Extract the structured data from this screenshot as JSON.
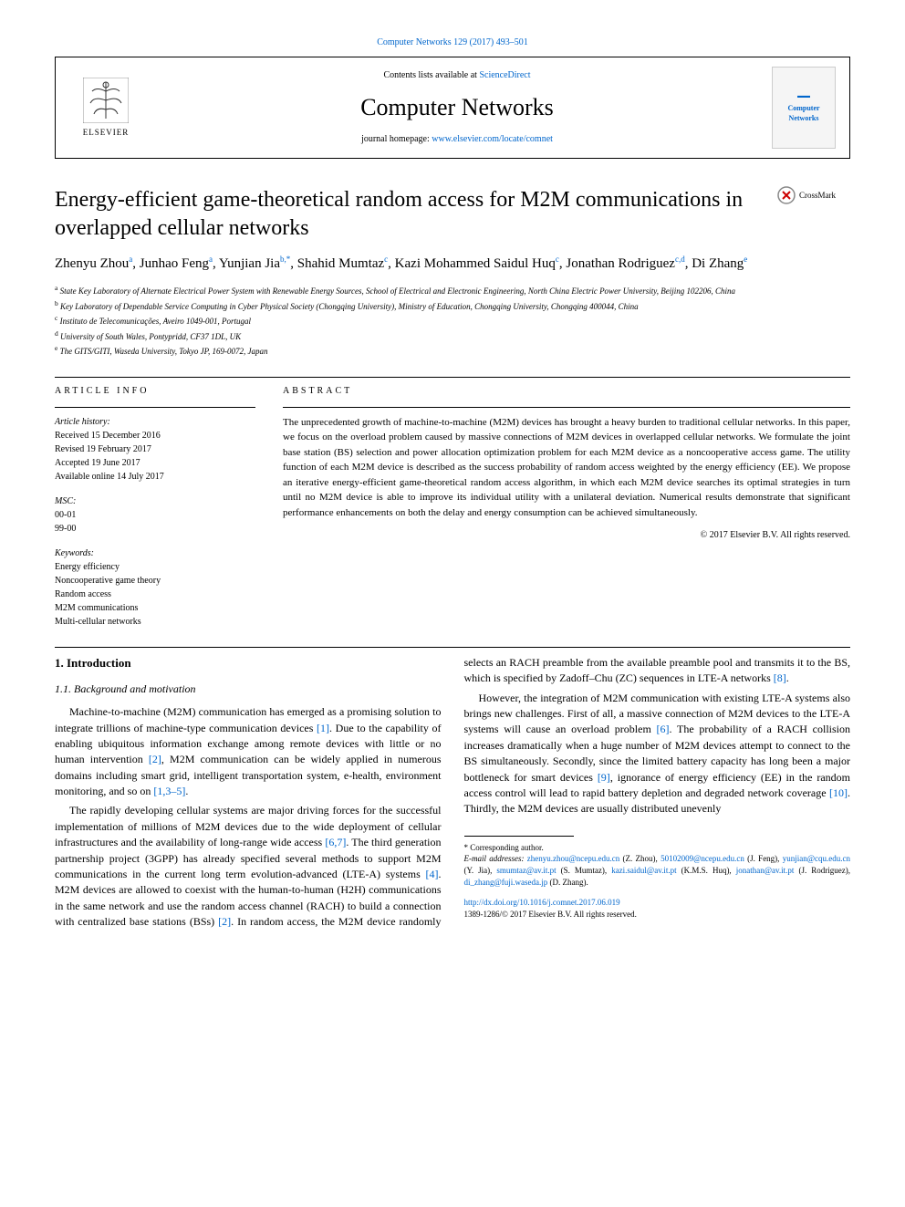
{
  "header": {
    "citation": "Computer Networks 129 (2017) 493–501",
    "contents_prefix": "Contents lists available at ",
    "sciencedirect": "ScienceDirect",
    "journal_title": "Computer Networks",
    "homepage_prefix": "journal homepage: ",
    "homepage_url": "www.elsevier.com/locate/comnet",
    "elsevier_label": "ELSEVIER",
    "cover_text": "Computer Networks"
  },
  "crossmark_label": "CrossMark",
  "title": "Energy-efficient game-theoretical random access for M2M communications in overlapped cellular networks",
  "authors_html": "Zhenyu Zhou<sup class='sup-link'>a</sup>, Junhao Feng<sup class='sup-link'>a</sup>, Yunjian Jia<sup class='sup-link'>b,*</sup>, Shahid Mumtaz<sup class='sup-link'>c</sup>, Kazi Mohammed Saidul Huq<sup class='sup-link'>c</sup>, Jonathan Rodriguez<sup class='sup-link'>c,d</sup>, Di Zhang<sup class='sup-link'>e</sup>",
  "affiliations": [
    {
      "sup": "a",
      "text": "State Key Laboratory of Alternate Electrical Power System with Renewable Energy Sources, School of Electrical and Electronic Engineering, North China Electric Power University, Beijing 102206, China"
    },
    {
      "sup": "b",
      "text": "Key Laboratory of Dependable Service Computing in Cyber Physical Society (Chongqing University), Ministry of Education, Chongqing University, Chongqing 400044, China"
    },
    {
      "sup": "c",
      "text": "Instituto de Telecomunicações, Aveiro 1049-001, Portugal"
    },
    {
      "sup": "d",
      "text": "University of South Wales, Pontypridd, CF37 1DL, UK"
    },
    {
      "sup": "e",
      "text": "The GITS/GITI, Waseda University, Tokyo JP, 169-0072, Japan"
    }
  ],
  "article_info_head": "ARTICLE INFO",
  "abstract_head": "ABSTRACT",
  "history": {
    "label": "Article history:",
    "received": "Received 15 December 2016",
    "revised": "Revised 19 February 2017",
    "accepted": "Accepted 19 June 2017",
    "online": "Available online 14 July 2017"
  },
  "msc": {
    "label": "MSC:",
    "codes": [
      "00-01",
      "99-00"
    ]
  },
  "keywords": {
    "label": "Keywords:",
    "items": [
      "Energy efficiency",
      "Noncooperative game theory",
      "Random access",
      "M2M communications",
      "Multi-cellular networks"
    ]
  },
  "abstract_text": "The unprecedented growth of machine-to-machine (M2M) devices has brought a heavy burden to traditional cellular networks. In this paper, we focus on the overload problem caused by massive connections of M2M devices in overlapped cellular networks. We formulate the joint base station (BS) selection and power allocation optimization problem for each M2M device as a noncooperative access game. The utility function of each M2M device is described as the success probability of random access weighted by the energy efficiency (EE). We propose an iterative energy-efficient game-theoretical random access algorithm, in which each M2M device searches its optimal strategies in turn until no M2M device is able to improve its individual utility with a unilateral deviation. Numerical results demonstrate that significant performance enhancements on both the delay and energy consumption can be achieved simultaneously.",
  "copyright": "© 2017 Elsevier B.V. All rights reserved.",
  "sec1": "1. Introduction",
  "sec11": "1.1. Background and motivation",
  "para1_html": "Machine-to-machine (M2M) communication has emerged as a promising solution to integrate trillions of machine-type communication devices <span class='cite'>[1]</span>. Due to the capability of enabling ubiquitous information exchange among remote devices with little or no human intervention <span class='cite'>[2]</span>, M2M communication can be widely applied in numerous domains including smart grid, intelligent transportation system, e-health, environment monitoring, and so on <span class='cite'>[1,3–5]</span>.",
  "para2_html": "The rapidly developing cellular systems are major driving forces for the successful implementation of millions of M2M devices due to the wide deployment of cellular infrastructures and the availability of long-range wide access <span class='cite'>[6,7]</span>. The third generation partnership project (3GPP) has already specified several methods to support M2M communications in the current long term evolution-advanced (LTE-A) systems <span class='cite'>[4]</span>. M2M devices are allowed to coexist with the human-to-human (H2H) communications in the same network and use the random access channel (RACH) to build a connection with centralized base stations (BSs) <span class='cite'>[2]</span>. In random access, the M2M device randomly selects an RACH preamble from the available preamble pool and transmits it to the BS, which is specified by Zadoff–Chu (ZC) sequences in LTE-A networks <span class='cite'>[8]</span>.",
  "para3_html": "However, the integration of M2M communication with existing LTE-A systems also brings new challenges. First of all, a massive connection of M2M devices to the LTE-A systems will cause an overload problem <span class='cite'>[6]</span>. The probability of a RACH collision increases dramatically when a huge number of M2M devices attempt to connect to the BS simultaneously. Secondly, since the limited battery capacity has long been a major bottleneck for smart devices <span class='cite'>[9]</span>, ignorance of energy efficiency (EE) in the random access control will lead to rapid battery depletion and degraded network coverage <span class='cite'>[10]</span>. Thirdly, the M2M devices are usually distributed unevenly",
  "footnotes": {
    "corresponding": "* Corresponding author.",
    "email_label": "E-mail addresses:",
    "emails_html": "<a>zhenyu.zhou@ncepu.edu.cn</a> (Z. Zhou), <a>50102009@ncepu.edu.cn</a> (J. Feng), <a>yunjian@cqu.edu.cn</a> (Y. Jia), <a>smumtaz@av.it.pt</a> (S. Mumtaz), <a>kazi.saidul@av.it.pt</a> (K.M.S. Huq), <a>jonathan@av.it.pt</a> (J. Rodriguez), <a>di_zhang@fuji.waseda.jp</a> (D. Zhang)."
  },
  "doi": {
    "url": "http://dx.doi.org/10.1016/j.comnet.2017.06.019",
    "copyright": "1389-1286/© 2017 Elsevier B.V. All rights reserved."
  },
  "colors": {
    "link": "#0066cc",
    "text": "#000000",
    "bg": "#ffffff",
    "elsevier_orange": "#ff6600"
  }
}
